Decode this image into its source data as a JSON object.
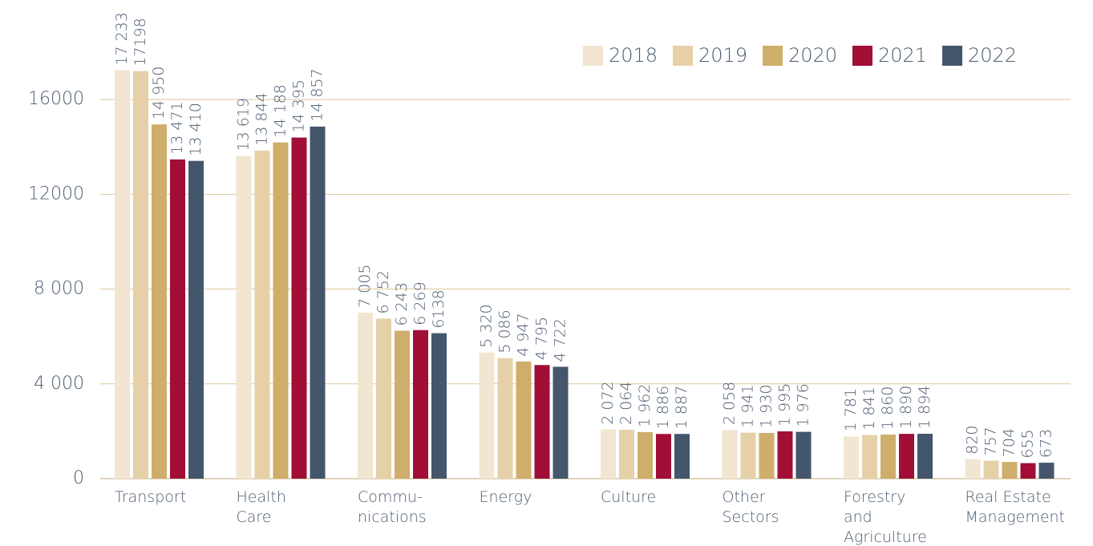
{
  "chart_data": {
    "type": "bar",
    "categories": [
      "Transport",
      "Health\nCare",
      "Commu-\nnications",
      "Energy",
      "Culture",
      "Other\nSectors",
      "Forestry\nand\nAgriculture",
      "Real Estate\nManagement"
    ],
    "series": [
      {
        "name": "2018",
        "color": "#f2e6d2",
        "values": [
          17233,
          13619,
          7005,
          5320,
          2072,
          2058,
          1781,
          820
        ],
        "value_labels": [
          "17 233",
          "13 619",
          "7 005",
          "5 320",
          "2 072",
          "2 058",
          "1 781",
          "820"
        ]
      },
      {
        "name": "2019",
        "color": "#e6d0a8",
        "values": [
          17198,
          13844,
          6752,
          5086,
          2064,
          1941,
          1841,
          757
        ],
        "value_labels": [
          "17198",
          "13 844",
          "6 752",
          "5 086",
          "2 064",
          "1 941",
          "1 841",
          "757"
        ]
      },
      {
        "name": "2020",
        "color": "#cfae6c",
        "values": [
          14950,
          14188,
          6243,
          4947,
          1962,
          1930,
          1860,
          704
        ],
        "value_labels": [
          "14 950",
          "14 188",
          "6 243",
          "4 947",
          "1 962",
          "1 930",
          "1 860",
          "704"
        ]
      },
      {
        "name": "2021",
        "color": "#a10e36",
        "values": [
          13471,
          14395,
          6269,
          4795,
          1886,
          1995,
          1890,
          655
        ],
        "value_labels": [
          "13 471",
          "14 395",
          "6 269",
          "4 795",
          "1 886",
          "1 995",
          "1 890",
          "655"
        ]
      },
      {
        "name": "2022",
        "color": "#44566c",
        "values": [
          13410,
          14857,
          6138,
          4722,
          1887,
          1976,
          1894,
          673
        ],
        "value_labels": [
          "13 410",
          "14 857",
          "6138",
          "4 722",
          "1 887",
          "1 976",
          "1 894",
          "673"
        ]
      }
    ],
    "ylim": [
      0,
      18000
    ],
    "yticks": [
      0,
      {
        "value": 4000,
        "label": "4 000"
      },
      {
        "value": 8000,
        "label": "8 000"
      },
      12000,
      16000
    ],
    "grid": true,
    "legend": "top-right"
  }
}
